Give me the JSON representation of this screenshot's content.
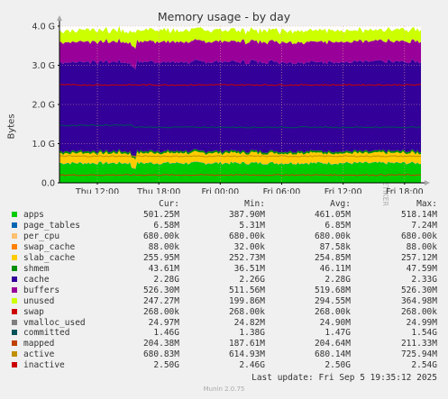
{
  "title": "Memory usage - by day",
  "watermark": "RRDTOOL / TOBI OETIKER",
  "footer": "Munin 2.0.75",
  "last_update": "Last update: Fri Sep  5 19:35:12 2025",
  "legend_headers": {
    "cur": "Cur:",
    "min": "Min:",
    "avg": "Avg:",
    "max": "Max:"
  },
  "chart_data": {
    "type": "area",
    "title": "Memory usage - by day",
    "ylabel": "Bytes",
    "yticks": [
      "0.0",
      "1.0 G",
      "2.0 G",
      "3.0 G",
      "4.0 G"
    ],
    "ytick_values_gb": [
      0,
      1,
      2,
      3,
      4
    ],
    "ylim": [
      0,
      4
    ],
    "xticks": [
      "Thu 12:00",
      "Thu 18:00",
      "Fri 00:00",
      "Fri 06:00",
      "Fri 12:00",
      "Fri 18:00"
    ],
    "xtick_hours": [
      12,
      18,
      24,
      30,
      36,
      42
    ],
    "xlim_hours": [
      8.3,
      43.6
    ],
    "stacked_series_gb": [
      {
        "name": "apps",
        "color": "#00cc00",
        "value": 0.5
      },
      {
        "name": "page_tables",
        "color": "#0066b3",
        "value": 0.007
      },
      {
        "name": "per_cpu",
        "color": "#ff8000",
        "value": 0.001
      },
      {
        "name": "swap_cache",
        "color": "#ffcc00",
        "value": 0.0001
      },
      {
        "name": "slab_cache",
        "color": "#ffcc00",
        "value": 0.255
      },
      {
        "name": "shmem",
        "color": "#008f00",
        "value": 0.046
      },
      {
        "name": "cache",
        "color": "#330099",
        "value": 2.28
      },
      {
        "name": "buffers",
        "color": "#990099",
        "value": 0.52
      },
      {
        "name": "unused",
        "color": "#ccff00",
        "value": 0.29
      }
    ],
    "line_series_gb": [
      {
        "name": "committed",
        "color": "#00525a",
        "value": 1.47
      },
      {
        "name": "mapped",
        "color": "#c04000",
        "value": 0.2
      },
      {
        "name": "active",
        "color": "#bf9000",
        "value": 0.68
      },
      {
        "name": "inactive",
        "color": "#cc0000",
        "value": 2.5
      }
    ],
    "grid": true
  },
  "legend": [
    {
      "name": "apps",
      "color": "#00cc00",
      "cur": "501.25M",
      "min": "387.90M",
      "avg": "461.05M",
      "max": "518.14M"
    },
    {
      "name": "page_tables",
      "color": "#0066b3",
      "cur": "6.58M",
      "min": "5.31M",
      "avg": "6.85M",
      "max": "7.24M"
    },
    {
      "name": "per_cpu",
      "color": "#ffc070",
      "cur": "680.00k",
      "min": "680.00k",
      "avg": "680.00k",
      "max": "680.00k"
    },
    {
      "name": "swap_cache",
      "color": "#ff8000",
      "cur": "88.00k",
      "min": "32.00k",
      "avg": "87.58k",
      "max": "88.00k"
    },
    {
      "name": "slab_cache",
      "color": "#ffcc00",
      "cur": "255.95M",
      "min": "252.73M",
      "avg": "254.85M",
      "max": "257.12M"
    },
    {
      "name": "shmem",
      "color": "#008f00",
      "cur": "43.61M",
      "min": "36.51M",
      "avg": "46.11M",
      "max": "47.59M"
    },
    {
      "name": "cache",
      "color": "#330099",
      "cur": "2.28G",
      "min": "2.26G",
      "avg": "2.28G",
      "max": "2.33G"
    },
    {
      "name": "buffers",
      "color": "#990099",
      "cur": "526.30M",
      "min": "511.56M",
      "avg": "519.68M",
      "max": "526.30M"
    },
    {
      "name": "unused",
      "color": "#ccff00",
      "cur": "247.27M",
      "min": "199.86M",
      "avg": "294.55M",
      "max": "364.98M"
    },
    {
      "name": "swap",
      "color": "#cc0000",
      "cur": "268.00k",
      "min": "268.00k",
      "avg": "268.00k",
      "max": "268.00k"
    },
    {
      "name": "vmalloc_used",
      "color": "#808080",
      "cur": "24.97M",
      "min": "24.82M",
      "avg": "24.90M",
      "max": "24.99M"
    },
    {
      "name": "committed",
      "color": "#00525a",
      "cur": "1.46G",
      "min": "1.38G",
      "avg": "1.47G",
      "max": "1.54G"
    },
    {
      "name": "mapped",
      "color": "#c04000",
      "cur": "204.38M",
      "min": "187.61M",
      "avg": "204.64M",
      "max": "211.33M"
    },
    {
      "name": "active",
      "color": "#bf9000",
      "cur": "680.83M",
      "min": "614.93M",
      "avg": "680.14M",
      "max": "725.94M"
    },
    {
      "name": "inactive",
      "color": "#cc0000",
      "cur": "2.50G",
      "min": "2.46G",
      "avg": "2.50G",
      "max": "2.54G"
    }
  ]
}
